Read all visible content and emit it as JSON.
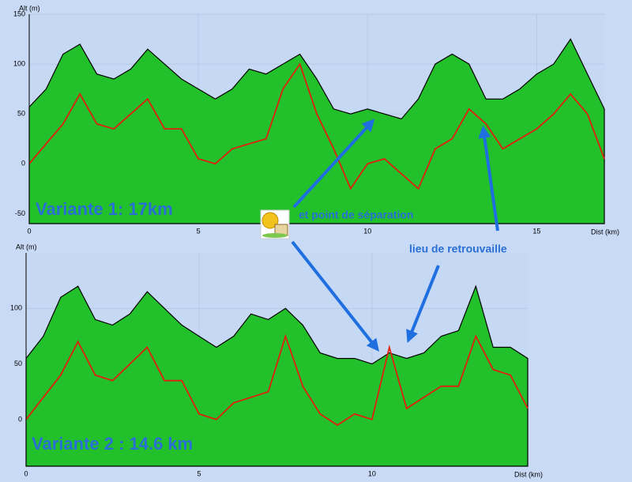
{
  "chart_data": [
    {
      "type": "area",
      "title": "Variante 1: 17km",
      "xlabel": "Dist (km)",
      "ylabel": "Alt (m)",
      "x": [
        0,
        0.5,
        1,
        1.5,
        2,
        2.5,
        3,
        3.5,
        4,
        4.5,
        5,
        5.5,
        6,
        6.5,
        7,
        7.5,
        8,
        8.5,
        9,
        9.5,
        10,
        10.5,
        11,
        11.5,
        12,
        12.5,
        13,
        13.5,
        14,
        14.5,
        15,
        15.5,
        16,
        16.5,
        17
      ],
      "series": [
        {
          "color": "#22c02a",
          "fill": true,
          "values": [
            57,
            75,
            110,
            120,
            90,
            85,
            95,
            115,
            100,
            85,
            75,
            65,
            75,
            95,
            90,
            100,
            110,
            85,
            55,
            50,
            55,
            50,
            45,
            65,
            100,
            110,
            100,
            65,
            65,
            75,
            90,
            100,
            125,
            90,
            55
          ]
        },
        {
          "color": "#e02010",
          "fill": false,
          "values": [
            0,
            20,
            40,
            70,
            40,
            35,
            50,
            65,
            35,
            35,
            5,
            0,
            15,
            20,
            25,
            75,
            100,
            50,
            15,
            -25,
            0,
            5,
            -10,
            -25,
            15,
            25,
            55,
            40,
            15,
            25,
            35,
            50,
            70,
            50,
            5
          ]
        }
      ],
      "xlim": [
        0,
        17
      ],
      "xticks": [
        0,
        5,
        10,
        15
      ],
      "ylim": [
        -60,
        150
      ],
      "yticks": [
        -50,
        0,
        50,
        100,
        150
      ],
      "grid": true
    },
    {
      "type": "area",
      "title": "Variante 2 : 14.6 km",
      "xlabel": "Dist (km)",
      "ylabel": "Alt (m)",
      "x": [
        0,
        0.5,
        1,
        1.5,
        2,
        2.5,
        3,
        3.5,
        4,
        4.5,
        5,
        5.5,
        6,
        6.5,
        7,
        7.5,
        8,
        8.5,
        9,
        9.5,
        10,
        10.5,
        11,
        11.5,
        12,
        12.5,
        13,
        13.5,
        14,
        14.5
      ],
      "series": [
        {
          "color": "#22c02a",
          "fill": true,
          "values": [
            55,
            75,
            110,
            120,
            90,
            85,
            95,
            115,
            100,
            85,
            75,
            65,
            75,
            95,
            90,
            100,
            85,
            60,
            55,
            55,
            50,
            60,
            55,
            60,
            75,
            80,
            120,
            65,
            65,
            55
          ]
        },
        {
          "color": "#e02010",
          "fill": false,
          "values": [
            0,
            20,
            40,
            70,
            40,
            35,
            50,
            65,
            35,
            35,
            5,
            0,
            15,
            20,
            25,
            75,
            30,
            5,
            -5,
            5,
            0,
            65,
            10,
            20,
            30,
            30,
            75,
            45,
            40,
            10
          ]
        }
      ],
      "xlim": [
        0,
        14.5
      ],
      "xticks": [
        0,
        5,
        10
      ],
      "ylim": [
        -42,
        150
      ],
      "yticks": [
        0,
        50,
        100
      ],
      "grid": true
    }
  ],
  "annotations": [
    "et point de séparation",
    "lieu de retrouvaille"
  ]
}
